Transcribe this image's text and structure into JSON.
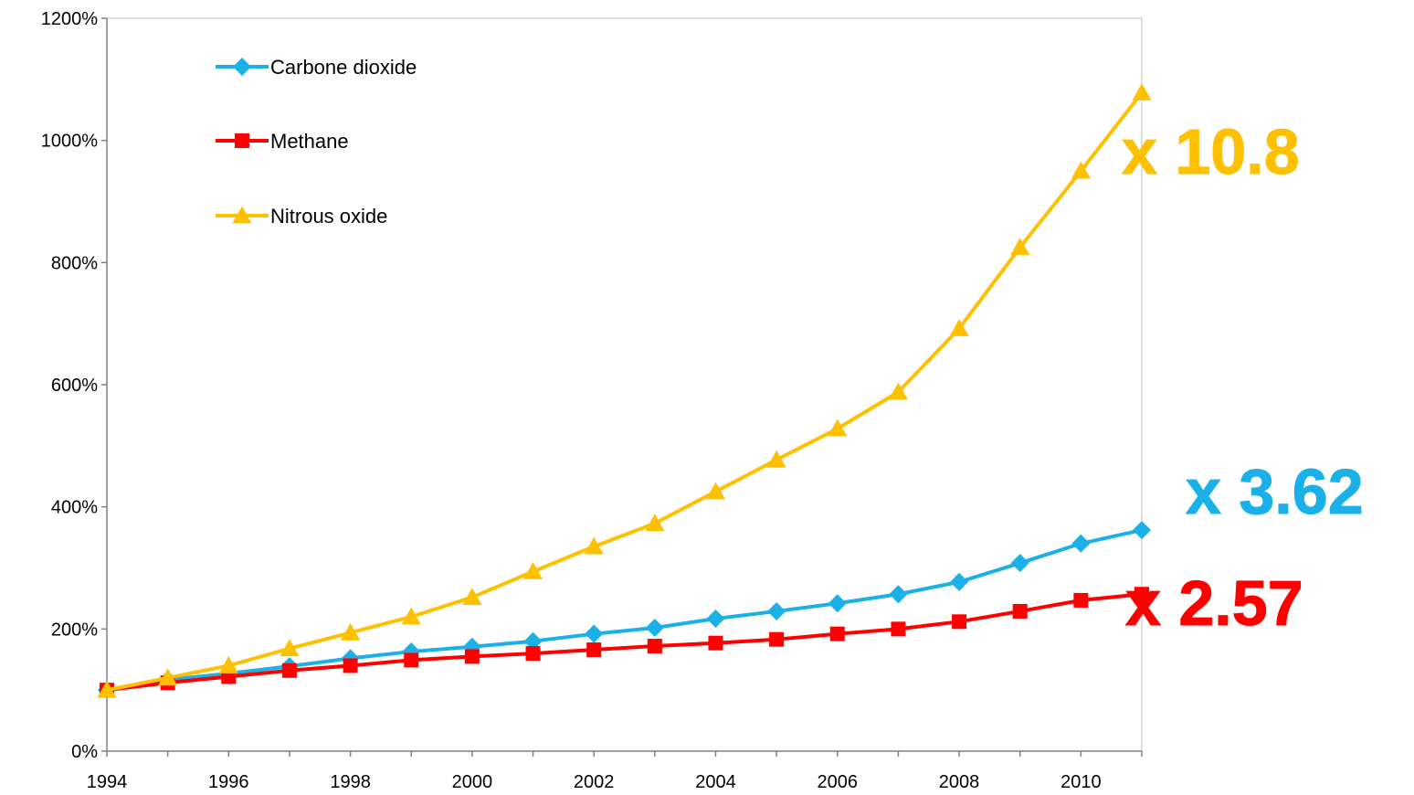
{
  "chart_data": {
    "type": "line",
    "title": "",
    "xlabel": "",
    "ylabel": "",
    "x": [
      1994,
      1995,
      1996,
      1997,
      1998,
      1999,
      2000,
      2001,
      2002,
      2003,
      2004,
      2005,
      2006,
      2007,
      2008,
      2009,
      2010,
      2011
    ],
    "xlim": [
      1994,
      2011
    ],
    "ylim": [
      0,
      1200
    ],
    "x_ticks": [
      "1994",
      "1996",
      "1998",
      "2000",
      "2002",
      "2004",
      "2006",
      "2008",
      "2010"
    ],
    "y_ticks": [
      "0%",
      "200%",
      "400%",
      "600%",
      "800%",
      "1000%",
      "1200%"
    ],
    "grid": false,
    "legend_position": "top-left",
    "series": [
      {
        "name": "Carbone dioxide",
        "color": "#1ab0e8",
        "marker": "diamond",
        "values": [
          100,
          117,
          127,
          139,
          152,
          163,
          171,
          180,
          192,
          202,
          217,
          229,
          242,
          257,
          277,
          308,
          340,
          362
        ]
      },
      {
        "name": "Methane",
        "color": "#ff0000",
        "marker": "square",
        "values": [
          100,
          112,
          122,
          132,
          140,
          149,
          155,
          160,
          166,
          172,
          177,
          183,
          192,
          200,
          212,
          229,
          247,
          257
        ]
      },
      {
        "name": "Nitrous oxide",
        "color": "#ffc000",
        "marker": "triangle",
        "values": [
          100,
          120,
          140,
          168,
          194,
          220,
          252,
          294,
          335,
          373,
          425,
          477,
          528,
          588,
          692,
          825,
          950,
          1078
        ]
      }
    ],
    "annotations": [
      {
        "text": "x 10.8",
        "color": "#ffc000"
      },
      {
        "text": "x 3.62",
        "color": "#1ab0e8"
      },
      {
        "text": "x 2.57",
        "color": "#ff0000"
      }
    ]
  }
}
